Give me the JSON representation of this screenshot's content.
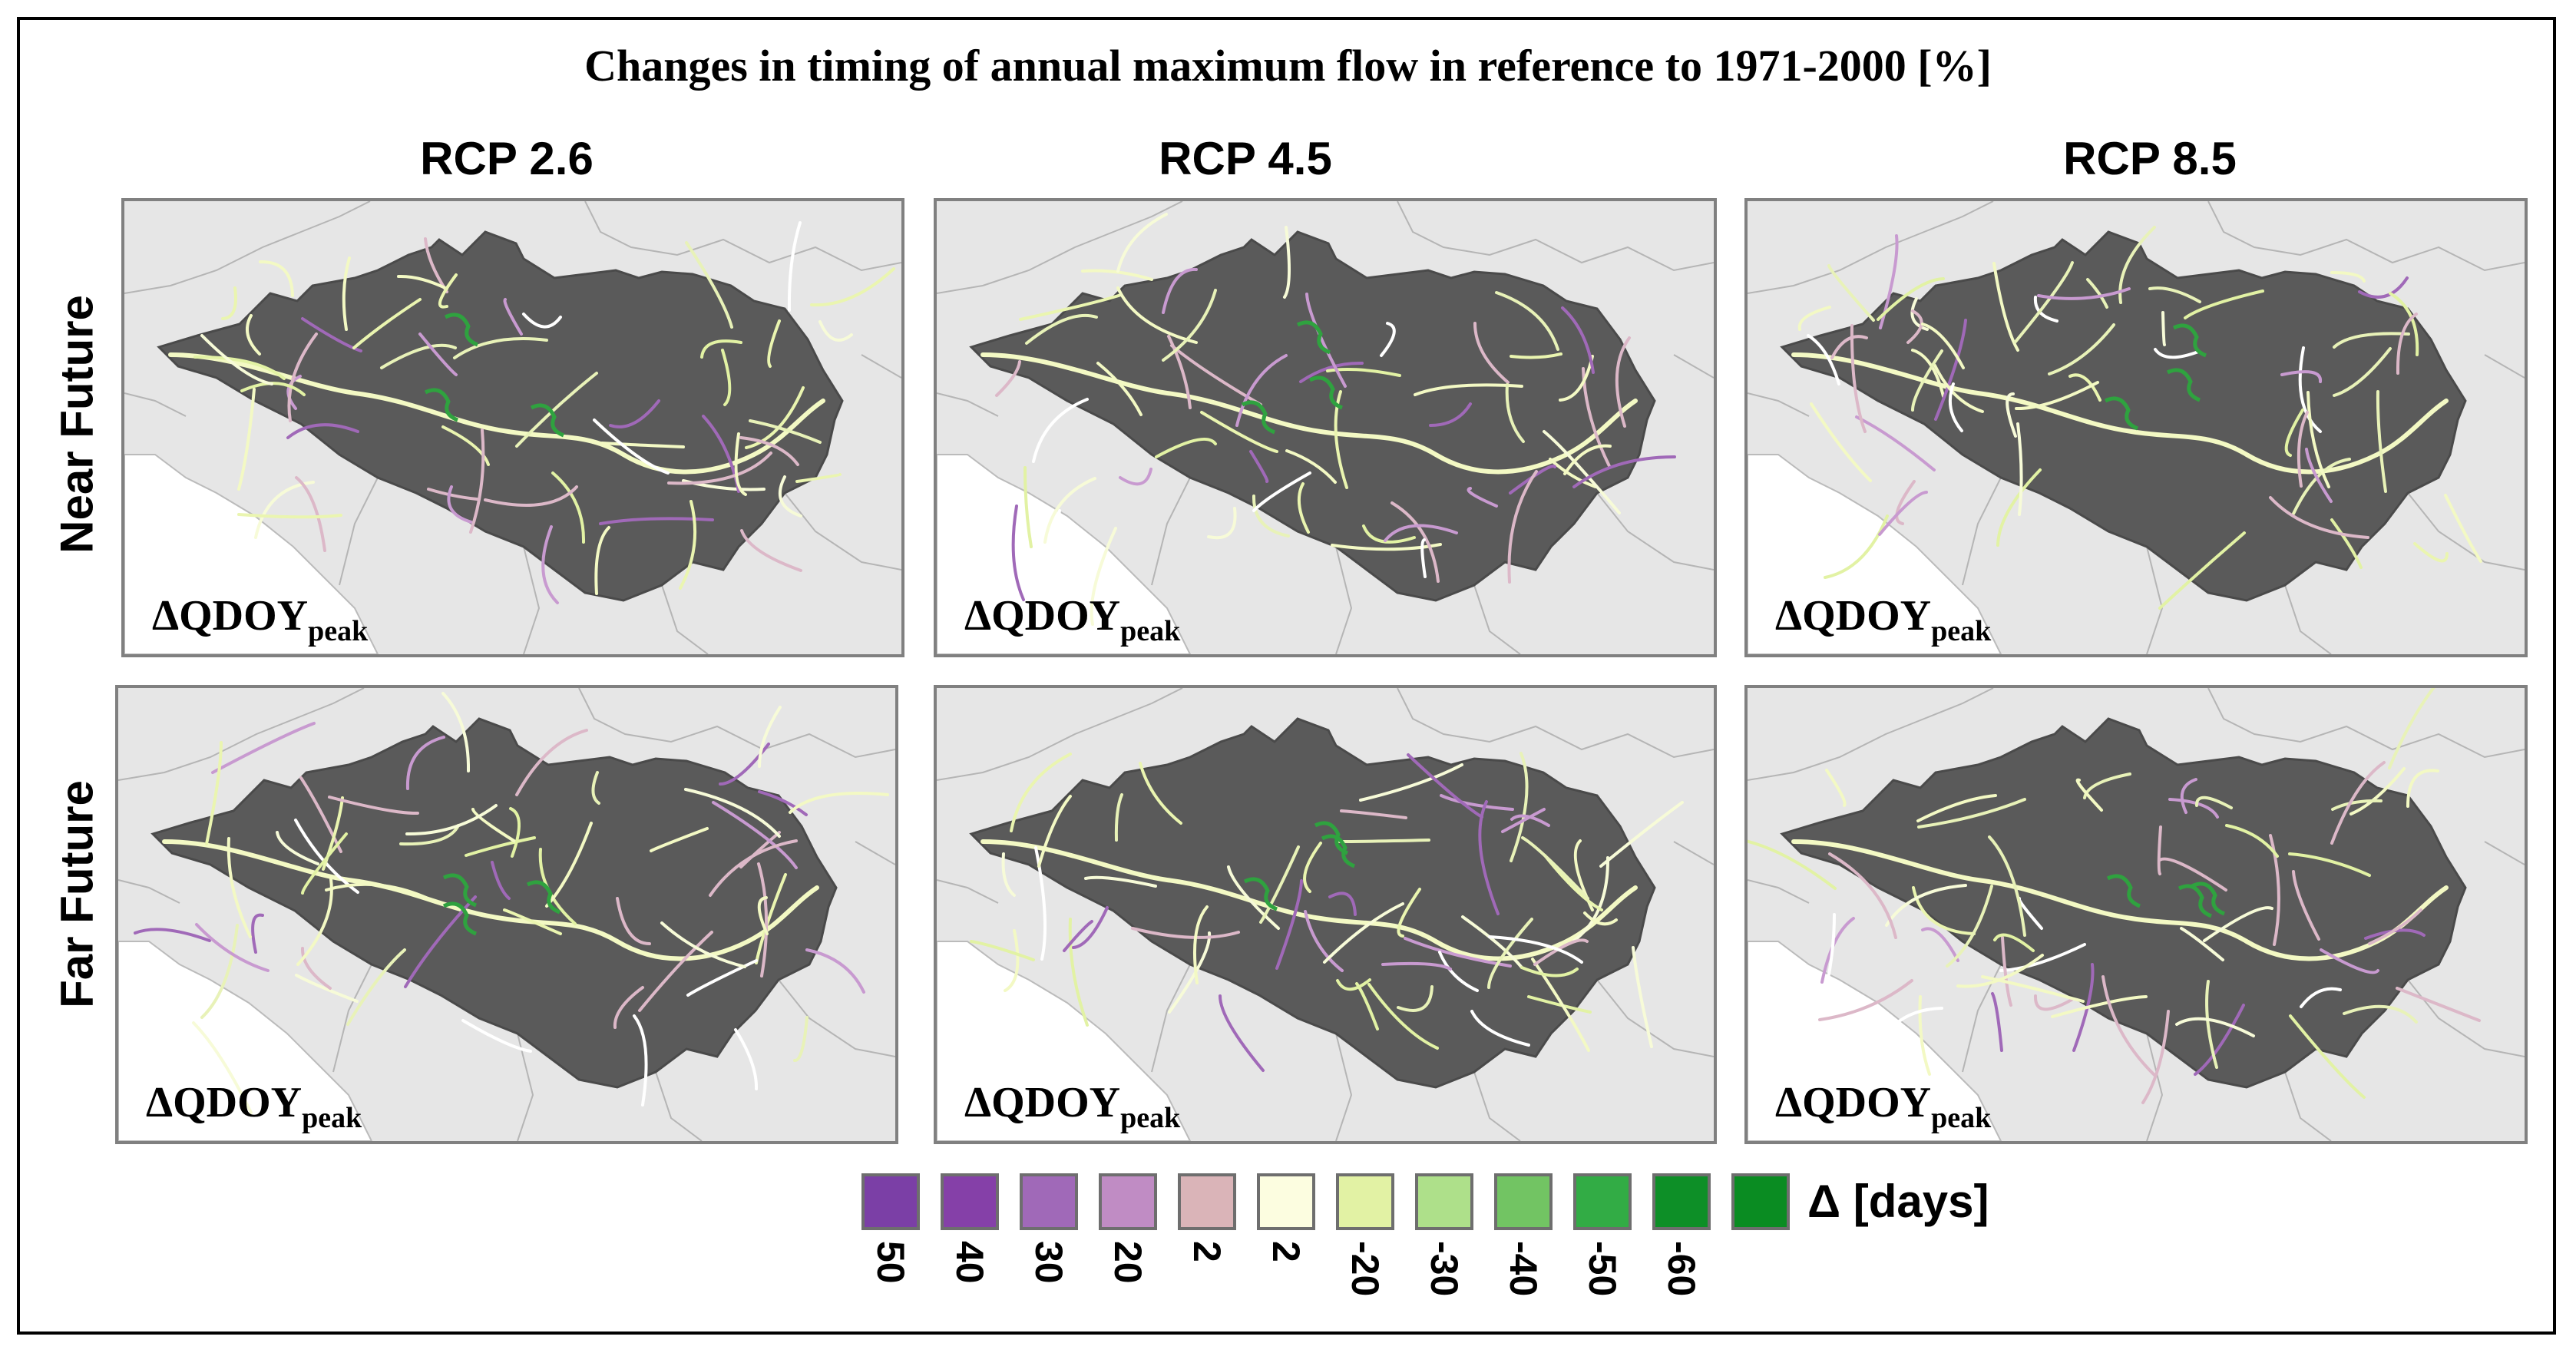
{
  "title": "Changes in timing of annual maximum flow in reference to 1971-2000 [%]",
  "columns": [
    "RCP 2.6",
    "RCP 4.5",
    "RCP 8.5"
  ],
  "rows": [
    "Near Future",
    "Far Future"
  ],
  "panel_label": {
    "main": "ΔQDOY",
    "sub": "peak"
  },
  "legend": {
    "unit": "Δ [days]",
    "items": [
      {
        "label": "50",
        "color": "#7b3fa6"
      },
      {
        "label": "40",
        "color": "#8540a8"
      },
      {
        "label": "30",
        "color": "#a069b8"
      },
      {
        "label": "20",
        "color": "#c08cc4"
      },
      {
        "label": "2",
        "color": "#dab4b8"
      },
      {
        "label": "2",
        "color": "#fcfde0"
      },
      {
        "label": "-20",
        "color": "#e2f2a4"
      },
      {
        "label": "-30",
        "color": "#aee08a"
      },
      {
        "label": "-40",
        "color": "#72c463"
      },
      {
        "label": "-50",
        "color": "#32ac45"
      },
      {
        "label": "-60",
        "color": "#0d8f27"
      },
      {
        "label": "",
        "color": "#0a8c22"
      }
    ]
  },
  "colors": {
    "basin": "#5a5a5a",
    "land": "#e6e6e6",
    "sea": "#ffffff"
  }
}
